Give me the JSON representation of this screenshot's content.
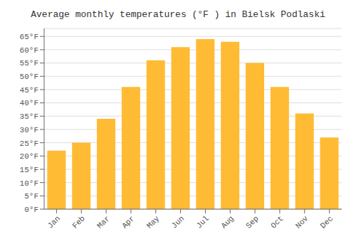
{
  "chart_data": {
    "type": "bar",
    "title": "Average monthly temperatures (°F ) in Bielsk Podlaski",
    "categories": [
      "Jan",
      "Feb",
      "Mar",
      "Apr",
      "May",
      "Jun",
      "Jul",
      "Aug",
      "Sep",
      "Oct",
      "Nov",
      "Dec"
    ],
    "values": [
      22,
      25,
      34,
      46,
      56,
      61,
      64,
      63,
      55,
      46,
      36,
      27
    ],
    "color": "#FFBB33",
    "ylim": [
      0,
      68
    ],
    "yticks": [
      {
        "value": 0,
        "label": "0°F"
      },
      {
        "value": 5,
        "label": "5°F"
      },
      {
        "value": 10,
        "label": "10°F"
      },
      {
        "value": 15,
        "label": "15°F"
      },
      {
        "value": 20,
        "label": "20°F"
      },
      {
        "value": 25,
        "label": "25°F"
      },
      {
        "value": 30,
        "label": "30°F"
      },
      {
        "value": 35,
        "label": "35°F"
      },
      {
        "value": 40,
        "label": "40°F"
      },
      {
        "value": 45,
        "label": "45°F"
      },
      {
        "value": 50,
        "label": "50°F"
      },
      {
        "value": 55,
        "label": "55°F"
      },
      {
        "value": 60,
        "label": "60°F"
      },
      {
        "value": 65,
        "label": "65°F"
      }
    ],
    "grid": true
  }
}
